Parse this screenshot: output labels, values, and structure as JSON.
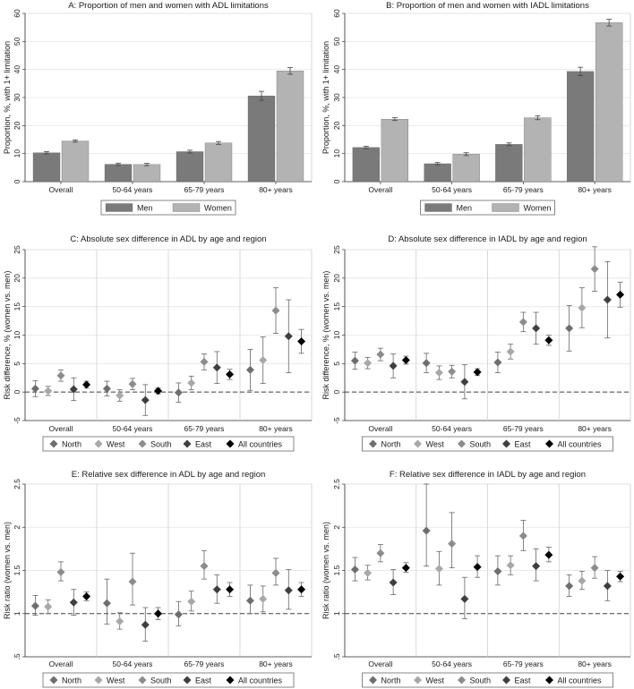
{
  "colors": {
    "men": "#7a7a7a",
    "women": "#b3b3b3",
    "north": "#6e6e6e",
    "west": "#a8a8a8",
    "south": "#8c8c8c",
    "east": "#3f3f3f",
    "all": "#000000",
    "ci": "#666666",
    "grid": "#e5e5e5",
    "ref": "#444444"
  },
  "chart_data": [
    {
      "type": "bar",
      "id": "A",
      "title": "A: Proportion of men and women with ADL limitations",
      "ylabel": "Proportion, %, with 1+ limitation",
      "categories": [
        "Overall",
        "50-64 years",
        "65-79 years",
        "80+ years"
      ],
      "ylim": [
        0,
        60
      ],
      "yticks": [
        "0",
        "10",
        "20",
        "30",
        "40",
        "50",
        "60"
      ],
      "series": [
        {
          "name": "Men",
          "key": "men",
          "values": [
            10.3,
            6.2,
            10.7,
            30.6
          ],
          "ci": [
            [
              9.9,
              10.7
            ],
            [
              5.8,
              6.6
            ],
            [
              10.2,
              11.2
            ],
            [
              29.0,
              32.2
            ]
          ]
        },
        {
          "name": "Women",
          "key": "women",
          "values": [
            14.5,
            6.1,
            13.8,
            39.5
          ],
          "ci": [
            [
              14.1,
              14.9
            ],
            [
              5.7,
              6.5
            ],
            [
              13.3,
              14.3
            ],
            [
              38.3,
              40.7
            ]
          ]
        }
      ]
    },
    {
      "type": "bar",
      "id": "B",
      "title": "B: Proportion of men and women with IADL limitations",
      "ylabel": "Proportion, %, with 1+ limitation",
      "categories": [
        "Overall",
        "50-64 years",
        "65-79 years",
        "80+ years"
      ],
      "ylim": [
        0,
        60
      ],
      "yticks": [
        "0",
        "10",
        "20",
        "30",
        "40",
        "50",
        "60"
      ],
      "series": [
        {
          "name": "Men",
          "key": "men",
          "values": [
            12.2,
            6.4,
            13.3,
            39.3
          ],
          "ci": [
            [
              11.8,
              12.6
            ],
            [
              6.0,
              6.8
            ],
            [
              12.8,
              13.8
            ],
            [
              37.8,
              40.8
            ]
          ]
        },
        {
          "name": "Women",
          "key": "women",
          "values": [
            22.3,
            9.8,
            22.8,
            56.7
          ],
          "ci": [
            [
              21.8,
              22.8
            ],
            [
              9.3,
              10.3
            ],
            [
              22.1,
              23.5
            ],
            [
              55.5,
              57.9
            ]
          ]
        }
      ]
    },
    {
      "type": "scatter",
      "id": "C",
      "title": "C: Absolute sex difference in ADL by age and region",
      "ylabel": "Risk difference, % (women vs. men)",
      "categories": [
        "Overall",
        "50-64 years",
        "65-79 years",
        "80+ years"
      ],
      "ylim": [
        -5,
        25
      ],
      "yticks": [
        "-5",
        "0",
        "5",
        "10",
        "15",
        "20",
        "25"
      ],
      "ref": 0,
      "series": [
        {
          "name": "North",
          "key": "north",
          "values": [
            0.6,
            0.6,
            -0.1,
            3.9
          ],
          "ci": [
            [
              -0.8,
              2.0
            ],
            [
              -0.7,
              1.9
            ],
            [
              -1.8,
              1.6
            ],
            [
              0.3,
              7.5
            ]
          ]
        },
        {
          "name": "West",
          "key": "west",
          "values": [
            0.2,
            -0.6,
            1.6,
            5.6
          ],
          "ci": [
            [
              -0.6,
              1.0
            ],
            [
              -1.6,
              0.4
            ],
            [
              0.4,
              2.8
            ],
            [
              1.5,
              9.7
            ]
          ]
        },
        {
          "name": "South",
          "key": "south",
          "values": [
            2.9,
            1.4,
            5.3,
            14.3
          ],
          "ci": [
            [
              1.9,
              3.9
            ],
            [
              0.4,
              2.4
            ],
            [
              3.9,
              6.7
            ],
            [
              10.3,
              18.3
            ]
          ]
        },
        {
          "name": "East",
          "key": "east",
          "values": [
            0.5,
            -1.4,
            4.3,
            9.8
          ],
          "ci": [
            [
              -1.5,
              2.5
            ],
            [
              -4.1,
              1.3
            ],
            [
              1.5,
              7.1
            ],
            [
              3.4,
              16.2
            ]
          ]
        },
        {
          "name": "All countries",
          "key": "all",
          "values": [
            1.3,
            0.2,
            3.1,
            8.9
          ],
          "ci": [
            [
              0.7,
              1.9
            ],
            [
              -0.3,
              0.7
            ],
            [
              2.2,
              4.0
            ],
            [
              6.8,
              11.0
            ]
          ]
        }
      ]
    },
    {
      "type": "scatter",
      "id": "D",
      "title": "D: Absolute sex difference in IADL by age and region",
      "ylabel": "Risk difference, % (women vs. men)",
      "categories": [
        "Overall",
        "50-64 years",
        "65-79 years",
        "80+ years"
      ],
      "ylim": [
        -5,
        25
      ],
      "yticks": [
        "-5",
        "0",
        "5",
        "10",
        "15",
        "20",
        "25"
      ],
      "ref": 0,
      "series": [
        {
          "name": "North",
          "key": "north",
          "values": [
            5.5,
            5.1,
            5.2,
            11.2
          ],
          "ci": [
            [
              4.0,
              7.0
            ],
            [
              3.4,
              6.8
            ],
            [
              3.4,
              7.0
            ],
            [
              7.2,
              15.2
            ]
          ]
        },
        {
          "name": "West",
          "key": "west",
          "values": [
            5.1,
            3.4,
            7.1,
            14.8
          ],
          "ci": [
            [
              4.1,
              6.1
            ],
            [
              2.2,
              4.6
            ],
            [
              5.8,
              8.4
            ],
            [
              11.3,
              18.3
            ]
          ]
        },
        {
          "name": "South",
          "key": "south",
          "values": [
            6.6,
            3.6,
            12.3,
            21.6
          ],
          "ci": [
            [
              5.5,
              7.7
            ],
            [
              2.5,
              4.7
            ],
            [
              10.6,
              14.0
            ],
            [
              17.7,
              25.5
            ]
          ]
        },
        {
          "name": "East",
          "key": "east",
          "values": [
            4.6,
            1.8,
            11.2,
            16.2
          ],
          "ci": [
            [
              2.5,
              6.7
            ],
            [
              -1.2,
              4.8
            ],
            [
              8.4,
              14.0
            ],
            [
              9.5,
              22.9
            ]
          ]
        },
        {
          "name": "All countries",
          "key": "all",
          "values": [
            5.6,
            3.5,
            9.1,
            17.1
          ],
          "ci": [
            [
              4.9,
              6.3
            ],
            [
              2.9,
              4.1
            ],
            [
              8.2,
              10.0
            ],
            [
              14.9,
              19.3
            ]
          ]
        }
      ]
    },
    {
      "type": "scatter",
      "id": "E",
      "title": "E: Relative sex difference in ADL by age and region",
      "ylabel": "Risk ratio (women vs. men)",
      "categories": [
        "Overall",
        "50-64 years",
        "65-79 years",
        "80+ years"
      ],
      "ylim": [
        0.5,
        2.5
      ],
      "yticks": [
        ".5",
        "1",
        "1.5",
        "2",
        "2.5"
      ],
      "ref": 1,
      "series": [
        {
          "name": "North",
          "key": "north",
          "values": [
            1.09,
            1.12,
            0.99,
            1.15
          ],
          "ci": [
            [
              0.98,
              1.21
            ],
            [
              0.88,
              1.4
            ],
            [
              0.86,
              1.14
            ],
            [
              1.0,
              1.33
            ]
          ]
        },
        {
          "name": "West",
          "key": "west",
          "values": [
            1.08,
            0.91,
            1.14,
            1.17
          ],
          "ci": [
            [
              1.0,
              1.16
            ],
            [
              0.82,
              1.01
            ],
            [
              1.03,
              1.26
            ],
            [
              1.02,
              1.32
            ]
          ]
        },
        {
          "name": "South",
          "key": "south",
          "values": [
            1.48,
            1.37,
            1.55,
            1.47
          ],
          "ci": [
            [
              1.38,
              1.6
            ],
            [
              1.1,
              1.7
            ],
            [
              1.4,
              1.73
            ],
            [
              1.33,
              1.64
            ]
          ]
        },
        {
          "name": "East",
          "key": "east",
          "values": [
            1.13,
            0.87,
            1.28,
            1.27
          ],
          "ci": [
            [
              0.98,
              1.28
            ],
            [
              0.68,
              1.07
            ],
            [
              1.12,
              1.45
            ],
            [
              1.05,
              1.51
            ]
          ]
        },
        {
          "name": "All countries",
          "key": "all",
          "values": [
            1.2,
            1.0,
            1.28,
            1.28
          ],
          "ci": [
            [
              1.15,
              1.25
            ],
            [
              0.93,
              1.07
            ],
            [
              1.2,
              1.36
            ],
            [
              1.2,
              1.36
            ]
          ]
        }
      ]
    },
    {
      "type": "scatter",
      "id": "F",
      "title": "F: Relative sex difference in IADL by age and region",
      "ylabel": "Risk ratio (women vs. men)",
      "categories": [
        "Overall",
        "50-64 years",
        "65-79 years",
        "80+ years"
      ],
      "ylim": [
        0.5,
        2.5
      ],
      "yticks": [
        ".5",
        "1",
        "1.5",
        "2",
        "2.5"
      ],
      "ref": 1,
      "series": [
        {
          "name": "North",
          "key": "north",
          "values": [
            1.51,
            1.96,
            1.49,
            1.32
          ],
          "ci": [
            [
              1.38,
              1.65
            ],
            [
              1.55,
              2.5
            ],
            [
              1.33,
              1.67
            ],
            [
              1.2,
              1.45
            ]
          ]
        },
        {
          "name": "West",
          "key": "west",
          "values": [
            1.47,
            1.52,
            1.56,
            1.38
          ],
          "ci": [
            [
              1.39,
              1.56
            ],
            [
              1.33,
              1.72
            ],
            [
              1.45,
              1.67
            ],
            [
              1.28,
              1.49
            ]
          ]
        },
        {
          "name": "South",
          "key": "south",
          "values": [
            1.7,
            1.81,
            1.9,
            1.53
          ],
          "ci": [
            [
              1.6,
              1.8
            ],
            [
              1.53,
              2.17
            ],
            [
              1.73,
              2.08
            ],
            [
              1.41,
              1.66
            ]
          ]
        },
        {
          "name": "East",
          "key": "east",
          "values": [
            1.36,
            1.17,
            1.55,
            1.32
          ],
          "ci": [
            [
              1.22,
              1.51
            ],
            [
              0.94,
              1.42
            ],
            [
              1.38,
              1.75
            ],
            [
              1.15,
              1.5
            ]
          ]
        },
        {
          "name": "All countries",
          "key": "all",
          "values": [
            1.53,
            1.54,
            1.68,
            1.43
          ],
          "ci": [
            [
              1.48,
              1.59
            ],
            [
              1.42,
              1.67
            ],
            [
              1.6,
              1.77
            ],
            [
              1.37,
              1.49
            ]
          ]
        }
      ]
    }
  ]
}
